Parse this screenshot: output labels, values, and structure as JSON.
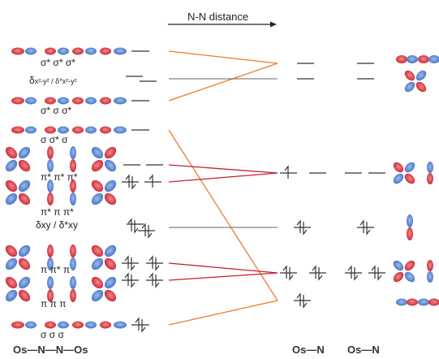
{
  "title": "N-N distance",
  "orbital_labels": {
    "l1": "σ* σ* σ*",
    "l2a": "δ",
    "l2b": "x²-y² / δ*x²-y²",
    "l3": "σ* σ  σ*",
    "l4": "σ  σ* σ",
    "l5": "π* π* π*",
    "l6": "π* π  π*",
    "l7a": "δxy / δ*xy",
    "l8": "π  π* π",
    "l9": "π  π  π",
    "l10": "σ  σ  σ"
  },
  "bottom_labels": {
    "left": "Os—N—N—Os",
    "mid": "Os—N",
    "right": "Os—N"
  },
  "colors": {
    "lobe_red": "#c8202e",
    "lobe_blue": "#3d6fc4",
    "correlation_orange": "#f07a30",
    "correlation_red": "#c42030",
    "level": "#555555"
  }
}
